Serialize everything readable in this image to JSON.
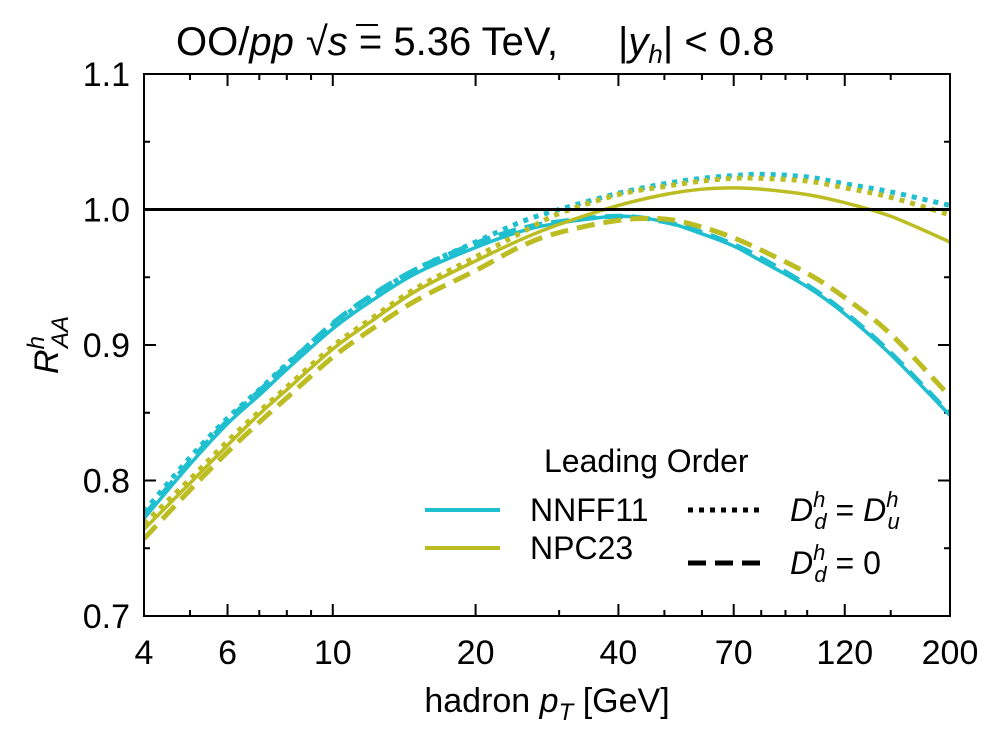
{
  "chart_data": {
    "type": "line",
    "title": "OO/pp √s = 5.36 TeV,    |y_h| < 0.8",
    "title_parts": {
      "system": "OO/",
      "pp": "pp",
      "sqrt": "√",
      "s": "s",
      "energy": " = 5.36 TeV,",
      "rap_y": "y",
      "rap_h": "h",
      "rap_cond": "< 0.8"
    },
    "xlabel": {
      "text": "hadron ",
      "p": "p",
      "sub": "T",
      "unit": " [GeV]"
    },
    "ylabel": {
      "R": "R",
      "sup": "h",
      "sub": "AA"
    },
    "xscale": "log",
    "xlim": [
      4,
      200
    ],
    "ylim": [
      0.7,
      1.1
    ],
    "xticks": [
      4,
      6,
      10,
      20,
      40,
      70,
      120,
      200
    ],
    "xtick_labels": [
      "4",
      "6",
      "10",
      "20",
      "40",
      "70",
      "120",
      "200"
    ],
    "xminor": [
      5,
      7,
      8,
      9,
      30,
      50,
      60,
      80,
      90,
      100,
      150
    ],
    "yticks": [
      0.7,
      0.8,
      0.9,
      1.0,
      1.1
    ],
    "ytick_labels": [
      "0.7",
      "0.8",
      "0.9",
      "1.0",
      "1.1"
    ],
    "yminor": [
      0.75,
      0.85,
      0.95,
      1.05
    ],
    "reference_line": 1.0,
    "colors": {
      "NNFF11": "#1fbfcf",
      "NPC23": "#bcbd22",
      "reference": "#000000"
    },
    "legend": {
      "header": "Leading Order",
      "position": "bottom-right",
      "entries": [
        {
          "label": "NNFF11",
          "color": "#1fbfcf",
          "style": "solid"
        },
        {
          "label": "NPC23",
          "color": "#bcbd22",
          "style": "solid"
        }
      ],
      "styles": [
        {
          "style": "dotted",
          "D": "D",
          "d_sub": "d",
          "h_sup": "h",
          "eq": " = ",
          "D2": "D",
          "u_sub": "u",
          "h2_sup": "h"
        },
        {
          "style": "dashed",
          "D": "D",
          "d_sub": "d",
          "h_sup": "h",
          "eq": " = 0"
        }
      ]
    },
    "x": [
      4,
      5,
      6,
      7,
      8,
      10,
      12,
      15,
      20,
      25,
      30,
      40,
      50,
      60,
      70,
      80,
      100,
      120,
      150,
      200
    ],
    "series": [
      {
        "name": "NNFF11 solid",
        "ff": "NNFF11",
        "style": "solid",
        "color": "#1fbfcf",
        "values": [
          0.772,
          0.812,
          0.842,
          0.863,
          0.882,
          0.912,
          0.932,
          0.953,
          0.972,
          0.984,
          0.99,
          0.995,
          0.991,
          0.982,
          0.973,
          0.962,
          0.943,
          0.923,
          0.893,
          0.848
        ]
      },
      {
        "name": "NNFF11 dotted",
        "ff": "NNFF11",
        "style": "dotted",
        "color": "#1fbfcf",
        "values": [
          0.777,
          0.817,
          0.846,
          0.867,
          0.886,
          0.915,
          0.935,
          0.956,
          0.976,
          0.991,
          1.0,
          1.012,
          1.019,
          1.023,
          1.025,
          1.026,
          1.024,
          1.019,
          1.013,
          1.003
        ]
      },
      {
        "name": "NNFF11 dashed",
        "ff": "NNFF11",
        "style": "dashed",
        "color": "#1fbfcf",
        "values": [
          0.774,
          0.814,
          0.844,
          0.866,
          0.885,
          0.916,
          0.936,
          0.956,
          0.975,
          0.986,
          0.991,
          0.995,
          0.991,
          0.983,
          0.974,
          0.964,
          0.944,
          0.924,
          0.894,
          0.849
        ]
      },
      {
        "name": "NPC23 solid",
        "ff": "NPC23",
        "style": "solid",
        "color": "#bcbd22",
        "values": [
          0.764,
          0.798,
          0.826,
          0.849,
          0.867,
          0.897,
          0.917,
          0.94,
          0.962,
          0.978,
          0.989,
          1.003,
          1.011,
          1.015,
          1.016,
          1.015,
          1.011,
          1.005,
          0.995,
          0.976
        ]
      },
      {
        "name": "NPC23 dotted",
        "ff": "NPC23",
        "style": "dotted",
        "color": "#bcbd22",
        "values": [
          0.768,
          0.801,
          0.829,
          0.851,
          0.869,
          0.899,
          0.919,
          0.942,
          0.965,
          0.983,
          0.997,
          1.011,
          1.017,
          1.021,
          1.023,
          1.023,
          1.021,
          1.016,
          1.009,
          0.996
        ]
      },
      {
        "name": "NPC23 dashed",
        "ff": "NPC23",
        "style": "dashed",
        "color": "#bcbd22",
        "values": [
          0.757,
          0.793,
          0.821,
          0.843,
          0.861,
          0.891,
          0.911,
          0.933,
          0.955,
          0.973,
          0.983,
          0.992,
          0.993,
          0.987,
          0.979,
          0.97,
          0.953,
          0.935,
          0.908,
          0.862
        ]
      }
    ]
  }
}
